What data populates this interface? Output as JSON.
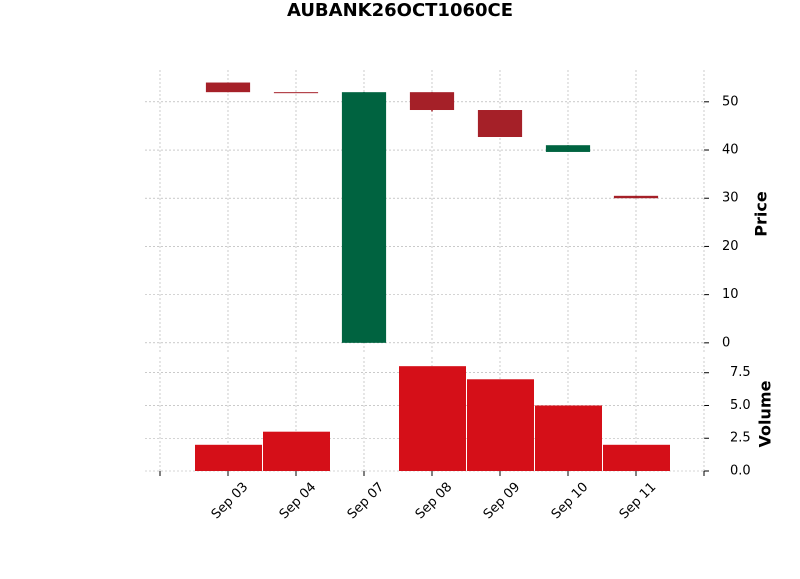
{
  "chart_data": {
    "type": "candlestick",
    "title": "AUBANK26OCT1060CE",
    "categories": [
      "Sep 03",
      "Sep 04",
      "Sep 07",
      "Sep 08",
      "Sep 09",
      "Sep 10",
      "Sep 11"
    ],
    "open": [
      54,
      52,
      0,
      52,
      48.3,
      39.6,
      30.5
    ],
    "high": [
      54,
      52,
      52,
      52,
      48.3,
      41,
      30.5
    ],
    "low": [
      52,
      52,
      0,
      48,
      42.7,
      39.6,
      30
    ],
    "close": [
      52,
      52,
      52,
      48.3,
      42.7,
      41,
      30
    ],
    "volume": [
      2,
      3,
      0,
      8,
      7,
      5,
      2
    ],
    "up_color": "#006340",
    "down_color": "#a52028",
    "volume_color": "#d50f18",
    "ylabel": "Price",
    "y2label": "Volume",
    "ylim": [
      -1.9,
      56.6
    ],
    "yticks": [
      0,
      10,
      20,
      30,
      40,
      50
    ],
    "y2lim": [
      0,
      8.7
    ],
    "y2ticks": [
      {
        "value": 0,
        "label": "0.0"
      },
      2.5,
      {
        "value": 5,
        "label": "5.0"
      },
      7.5
    ],
    "grid": true
  }
}
